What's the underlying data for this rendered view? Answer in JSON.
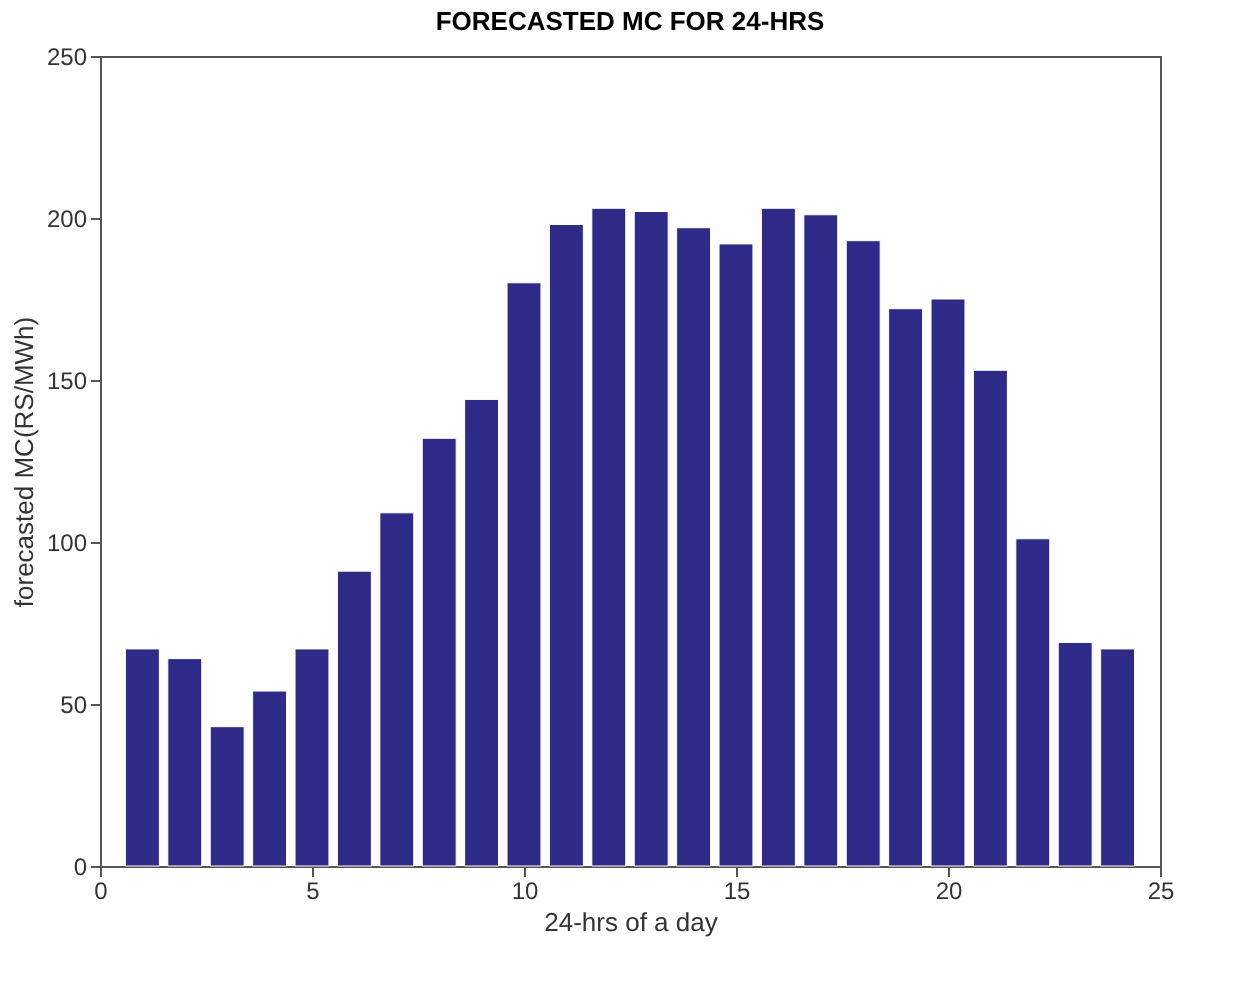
{
  "chart_data": {
    "type": "bar",
    "title": "FORECASTED MC FOR 24-HRS",
    "xlabel": "24-hrs of a day",
    "ylabel": "forecasted MC(RS/MWh)",
    "x": [
      1,
      2,
      3,
      4,
      5,
      6,
      7,
      8,
      9,
      10,
      11,
      12,
      13,
      14,
      15,
      16,
      17,
      18,
      19,
      20,
      21,
      22,
      23,
      24
    ],
    "values": [
      67,
      64,
      43,
      54,
      67,
      91,
      109,
      132,
      144,
      180,
      198,
      203,
      202,
      197,
      192,
      203,
      201,
      193,
      172,
      175,
      153,
      101,
      69,
      67
    ],
    "color": "#2e2a87",
    "xlim": [
      0,
      25
    ],
    "xticks": [
      0,
      5,
      10,
      15,
      20,
      25
    ],
    "ylim": [
      0,
      250
    ],
    "yticks": [
      0,
      50,
      100,
      150,
      200,
      250
    ],
    "grid": false
  }
}
